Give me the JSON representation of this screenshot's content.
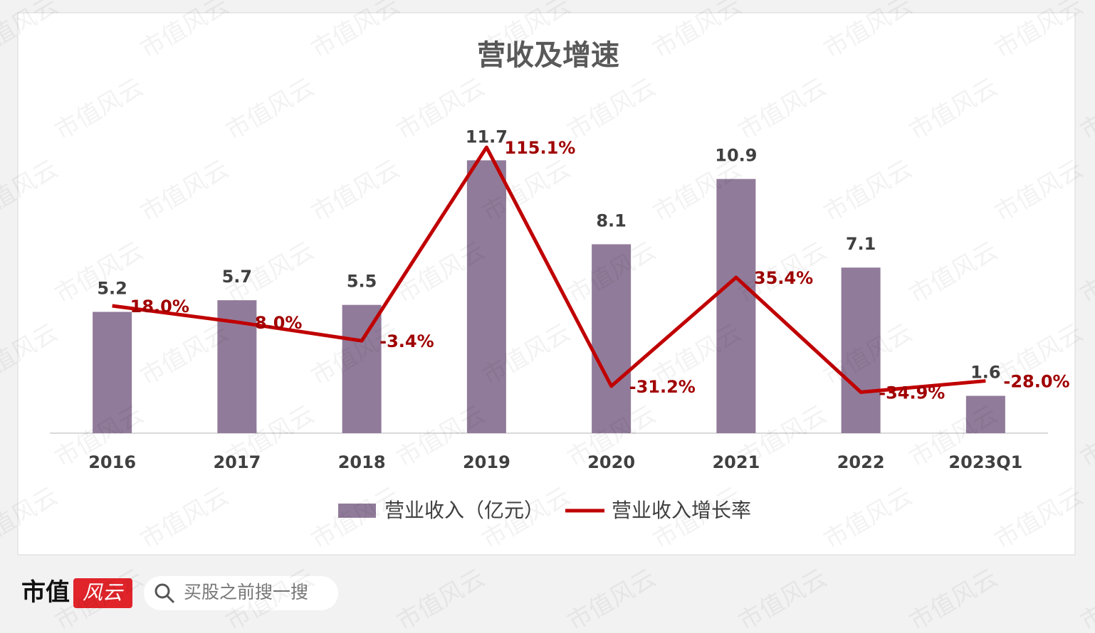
{
  "chart_data": {
    "type": "bar-line",
    "title": "营收及增速",
    "categories": [
      "2016",
      "2017",
      "2018",
      "2019",
      "2020",
      "2021",
      "2022",
      "2023Q1"
    ],
    "series": [
      {
        "name": "营业收入（亿元）",
        "type": "bar",
        "color": "#917b9a",
        "values": [
          5.2,
          5.7,
          5.5,
          11.7,
          8.1,
          10.9,
          7.1,
          1.6
        ]
      },
      {
        "name": "营业收入增长率",
        "type": "line",
        "axis": "y2",
        "color": "#c00000",
        "values": [
          18.0,
          8.0,
          -3.4,
          115.1,
          -31.2,
          35.4,
          -34.9,
          -28.0
        ],
        "value_labels": [
          "18.0%",
          "8.0%",
          "-3.4%",
          "115.1%",
          "-31.2%",
          "35.4%",
          "-34.9%",
          "-28.0%"
        ]
      }
    ],
    "ylim": [
      0,
      14
    ],
    "y2lim": [
      -60,
      140
    ],
    "legend": "bottom"
  },
  "footer": {
    "brand": "市值",
    "brand_badge": "风云",
    "search_placeholder": "买股之前搜一搜"
  },
  "watermark": "市值风云"
}
